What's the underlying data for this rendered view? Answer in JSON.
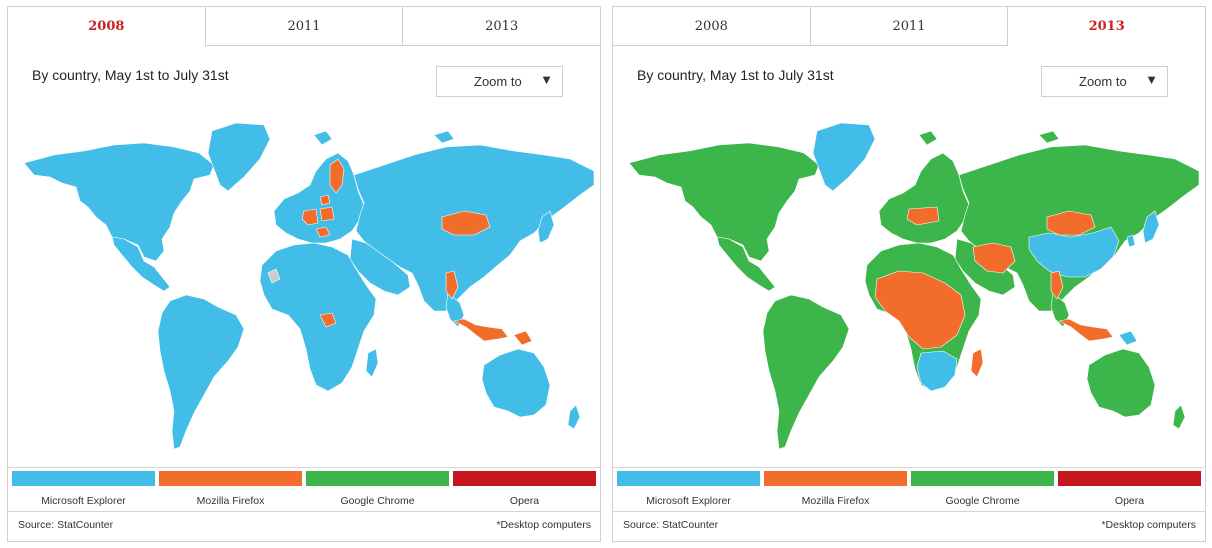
{
  "colors": {
    "explorer": "#41bde8",
    "firefox": "#f26d2b",
    "chrome": "#3cb54a",
    "opera": "#c4161c",
    "nodata": "#cccccc",
    "tab_active": "#cc1f1f"
  },
  "panels": [
    {
      "tabs": [
        {
          "label": "2008",
          "active": true
        },
        {
          "label": "2011",
          "active": false
        },
        {
          "label": "2013",
          "active": false
        }
      ],
      "subtitle": "By country, May 1st to July 31st",
      "zoom_label": "Zoom to",
      "zoom_icon": "triangle-down-icon",
      "map": {
        "base": "explorer",
        "regions": [
          {
            "name": "Finland",
            "browser": "firefox"
          },
          {
            "name": "Estonia-Latvia",
            "browser": "firefox"
          },
          {
            "name": "Germany",
            "browser": "firefox"
          },
          {
            "name": "Poland",
            "browser": "firefox"
          },
          {
            "name": "Slovenia-Croatia",
            "browser": "firefox"
          },
          {
            "name": "Mongolia",
            "browser": "firefox"
          },
          {
            "name": "Myanmar",
            "browser": "firefox"
          },
          {
            "name": "Indonesia",
            "browser": "firefox"
          },
          {
            "name": "Papua New Guinea",
            "browser": "firefox"
          },
          {
            "name": "Central Africa",
            "browser": "firefox"
          },
          {
            "name": "Western Sahara",
            "browser": "nodata"
          }
        ]
      },
      "legend": [
        {
          "label": "Microsoft Explorer",
          "key": "explorer"
        },
        {
          "label": "Mozilla Firefox",
          "key": "firefox"
        },
        {
          "label": "Google Chrome",
          "key": "chrome"
        },
        {
          "label": "Opera",
          "key": "opera"
        }
      ],
      "source": "Source: StatCounter",
      "note": "*Desktop computers"
    },
    {
      "tabs": [
        {
          "label": "2008",
          "active": false
        },
        {
          "label": "2011",
          "active": false
        },
        {
          "label": "2013",
          "active": true
        }
      ],
      "subtitle": "By country, May 1st to July 31st",
      "zoom_label": "Zoom to",
      "zoom_icon": "triangle-down-icon",
      "map": {
        "base": "chrome",
        "regions": [
          {
            "name": "Greenland",
            "browser": "explorer"
          },
          {
            "name": "China",
            "browser": "explorer"
          },
          {
            "name": "South Korea",
            "browser": "explorer"
          },
          {
            "name": "Japan",
            "browser": "explorer"
          },
          {
            "name": "Papua New Guinea",
            "browser": "explorer"
          },
          {
            "name": "Southern Africa",
            "browser": "explorer"
          },
          {
            "name": "Mongolia",
            "browser": "firefox"
          },
          {
            "name": "Germany-Poland",
            "browser": "firefox"
          },
          {
            "name": "Iran-Afghanistan",
            "browser": "firefox"
          },
          {
            "name": "Myanmar",
            "browser": "firefox"
          },
          {
            "name": "Indonesia",
            "browser": "firefox"
          },
          {
            "name": "Central Africa",
            "browser": "firefox"
          },
          {
            "name": "Madagascar",
            "browser": "firefox"
          }
        ]
      },
      "legend": [
        {
          "label": "Microsoft Explorer",
          "key": "explorer"
        },
        {
          "label": "Mozilla Firefox",
          "key": "firefox"
        },
        {
          "label": "Google Chrome",
          "key": "chrome"
        },
        {
          "label": "Opera",
          "key": "opera"
        }
      ],
      "source": "Source: StatCounter",
      "note": "*Desktop computers"
    }
  ]
}
